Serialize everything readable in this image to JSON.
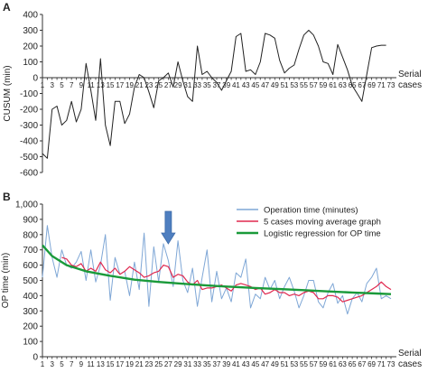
{
  "chart_data": [
    {
      "panel_label": "A",
      "type": "line",
      "ylabel": "CUSUM (min)",
      "xlabel": "Serial cases",
      "ylim": [
        -600,
        400
      ],
      "yticks": [
        400,
        300,
        200,
        100,
        0,
        -100,
        -200,
        -300,
        -400,
        -500,
        -600
      ],
      "xticks": [
        1,
        3,
        5,
        7,
        9,
        11,
        13,
        15,
        17,
        19,
        21,
        23,
        25,
        27,
        29,
        31,
        33,
        35,
        37,
        39,
        41,
        43,
        45,
        47,
        49,
        51,
        53,
        55,
        57,
        59,
        61,
        63,
        65,
        67,
        69,
        71,
        73
      ],
      "grid": false,
      "series": [
        {
          "color": "#222222",
          "x": [
            1,
            2,
            3,
            4,
            5,
            6,
            7,
            8,
            9,
            10,
            11,
            12,
            13,
            14,
            15,
            16,
            17,
            18,
            19,
            20,
            21,
            22,
            23,
            24,
            25,
            26,
            27,
            28,
            29,
            30,
            31,
            32,
            33,
            34,
            35,
            36,
            37,
            38,
            39,
            40,
            41,
            42,
            43,
            44,
            45,
            46,
            47,
            48,
            49,
            50,
            51,
            52,
            53,
            54,
            55,
            56,
            57,
            58,
            59,
            60,
            61,
            62,
            63,
            64,
            65,
            66,
            67,
            68,
            69,
            70,
            71,
            72
          ],
          "y": [
            -480,
            -510,
            -200,
            -180,
            -300,
            -270,
            -150,
            -280,
            -200,
            90,
            -80,
            -270,
            120,
            -300,
            -430,
            -150,
            -150,
            -290,
            -230,
            -60,
            20,
            0,
            -90,
            -190,
            -20,
            0,
            30,
            -60,
            100,
            -20,
            -120,
            -150,
            200,
            20,
            40,
            0,
            -30,
            -80,
            -20,
            40,
            260,
            280,
            40,
            50,
            20,
            100,
            280,
            270,
            250,
            110,
            30,
            60,
            80,
            180,
            270,
            300,
            270,
            200,
            100,
            90,
            20,
            210,
            130,
            50,
            -50,
            -100,
            -150,
            20,
            190,
            200,
            205,
            205
          ]
        }
      ]
    },
    {
      "panel_label": "B",
      "type": "line",
      "ylabel": "OP time (min)",
      "xlabel": "Serial cases",
      "ylim": [
        0,
        1000
      ],
      "yticks": [
        "1,000",
        "900",
        "800",
        "700",
        "600",
        "500",
        "400",
        "300",
        "200",
        "100",
        "0"
      ],
      "xticks": [
        1,
        3,
        5,
        7,
        9,
        11,
        13,
        15,
        17,
        19,
        21,
        23,
        25,
        27,
        29,
        31,
        33,
        35,
        37,
        39,
        41,
        43,
        45,
        47,
        49,
        51,
        53,
        55,
        57,
        59,
        61,
        63,
        65,
        67,
        69,
        71,
        73
      ],
      "grid": false,
      "legend_position": "top-right",
      "series": [
        {
          "name": "Operation time (minutes)",
          "color": "#7fa7d6",
          "x": [
            1,
            2,
            3,
            4,
            5,
            6,
            7,
            8,
            9,
            10,
            11,
            12,
            13,
            14,
            15,
            16,
            17,
            18,
            19,
            20,
            21,
            22,
            23,
            24,
            25,
            26,
            27,
            28,
            29,
            30,
            31,
            32,
            33,
            34,
            35,
            36,
            37,
            38,
            39,
            40,
            41,
            42,
            43,
            44,
            45,
            46,
            47,
            48,
            49,
            50,
            51,
            52,
            53,
            54,
            55,
            56,
            57,
            58,
            59,
            60,
            61,
            62,
            63,
            64,
            65,
            66,
            67,
            68,
            69,
            70,
            71,
            72,
            73
          ],
          "y": [
            520,
            860,
            650,
            520,
            700,
            600,
            580,
            620,
            690,
            500,
            700,
            490,
            600,
            800,
            370,
            650,
            540,
            560,
            400,
            620,
            440,
            810,
            330,
            720,
            490,
            740,
            630,
            460,
            760,
            500,
            420,
            580,
            330,
            520,
            700,
            360,
            560,
            380,
            450,
            360,
            550,
            520,
            640,
            320,
            410,
            380,
            520,
            440,
            500,
            380,
            460,
            520,
            430,
            320,
            400,
            500,
            500,
            360,
            320,
            420,
            480,
            350,
            400,
            280,
            380,
            420,
            360,
            480,
            520,
            580,
            380,
            400,
            380
          ]
        },
        {
          "name": "5 cases moving average graph",
          "color": "#e0284f",
          "x": [
            5,
            6,
            7,
            8,
            9,
            10,
            11,
            12,
            13,
            14,
            15,
            16,
            17,
            18,
            19,
            20,
            21,
            22,
            23,
            24,
            25,
            26,
            27,
            28,
            29,
            30,
            31,
            32,
            33,
            34,
            35,
            36,
            37,
            38,
            39,
            40,
            41,
            42,
            43,
            44,
            45,
            46,
            47,
            48,
            49,
            50,
            51,
            52,
            53,
            54,
            55,
            56,
            57,
            58,
            59,
            60,
            61,
            62,
            63,
            64,
            65,
            66,
            67,
            68,
            69,
            70,
            71,
            72,
            73
          ],
          "y": [
            650,
            640,
            600,
            590,
            610,
            560,
            580,
            560,
            620,
            570,
            550,
            580,
            540,
            560,
            590,
            570,
            550,
            520,
            530,
            550,
            560,
            600,
            590,
            520,
            540,
            530,
            490,
            470,
            500,
            440,
            450,
            450,
            460,
            470,
            450,
            430,
            470,
            480,
            470,
            460,
            440,
            450,
            410,
            420,
            440,
            420,
            420,
            400,
            410,
            400,
            420,
            430,
            420,
            380,
            380,
            400,
            400,
            390,
            360,
            370,
            380,
            390,
            400,
            420,
            440,
            460,
            490,
            460,
            440
          ]
        },
        {
          "name": "Logistic regression for OP time",
          "color": "#1a9a3a",
          "x": [
            1,
            3,
            6,
            10,
            15,
            20,
            25,
            30,
            35,
            40,
            45,
            50,
            55,
            60,
            65,
            70,
            73
          ],
          "y": [
            730,
            660,
            600,
            560,
            530,
            505,
            490,
            478,
            467,
            458,
            450,
            443,
            436,
            428,
            421,
            414,
            410
          ]
        }
      ],
      "annotations": [
        {
          "type": "arrow",
          "at_x": 27,
          "color": "#4f7fc0"
        }
      ]
    }
  ]
}
